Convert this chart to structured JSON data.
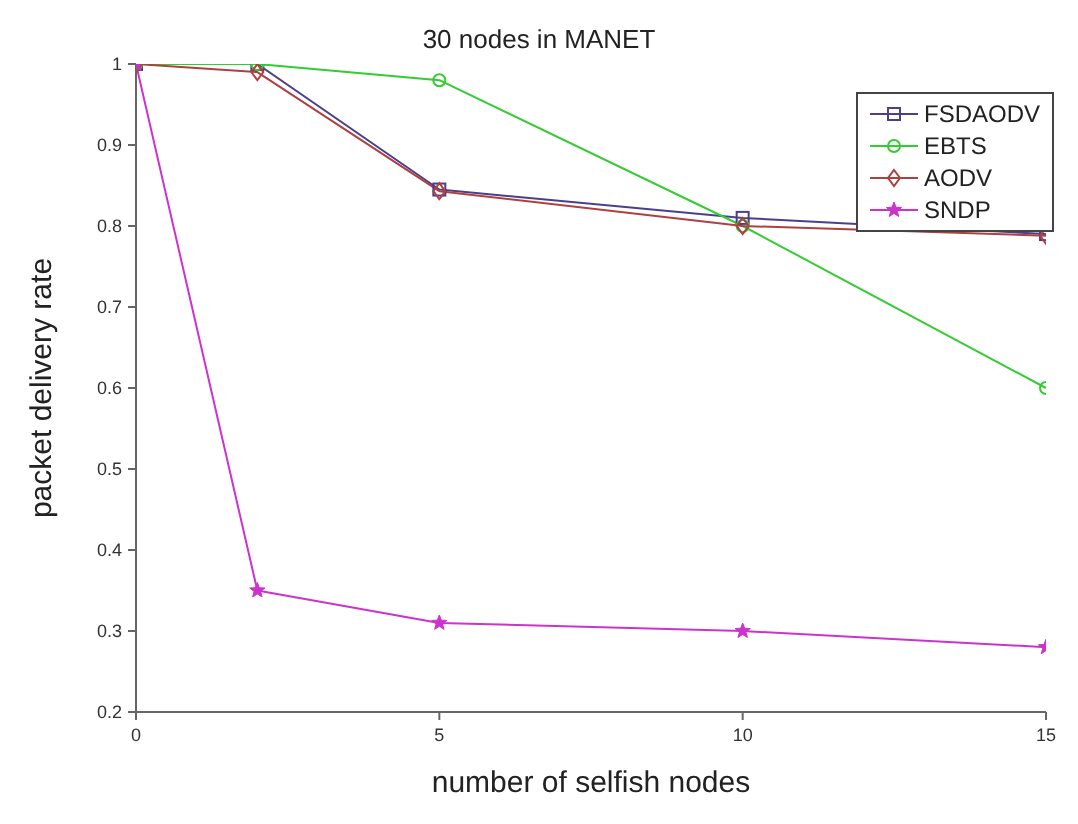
{
  "chart_data": {
    "type": "line",
    "title": "30 nodes in MANET",
    "xlabel": "number of selfish nodes",
    "ylabel": "packet delivery rate",
    "x": [
      0,
      2,
      5,
      10,
      15
    ],
    "series": [
      {
        "name": "FSDAODV",
        "color": "#4a3f8f",
        "marker": "square",
        "values": [
          1,
          1,
          0.845,
          0.81,
          0.79
        ]
      },
      {
        "name": "EBTS",
        "color": "#33cc33",
        "marker": "circle",
        "values": [
          1,
          1,
          0.98,
          0.8,
          0.6
        ]
      },
      {
        "name": "AODV",
        "color": "#b04040",
        "marker": "diamond",
        "values": [
          1,
          0.99,
          0.843,
          0.8,
          0.788
        ]
      },
      {
        "name": "SNDP",
        "color": "#cc33cc",
        "marker": "star",
        "values": [
          1,
          0.35,
          0.31,
          0.3,
          0.28
        ]
      }
    ],
    "xlim": [
      0,
      15
    ],
    "xticks": [
      0,
      5,
      10,
      15
    ],
    "ylim": [
      0.2,
      1
    ],
    "yticks": [
      0.2,
      0.3,
      0.4,
      0.5,
      0.6,
      0.7,
      0.8,
      0.9,
      1
    ],
    "legend": "top right",
    "grid": false
  }
}
